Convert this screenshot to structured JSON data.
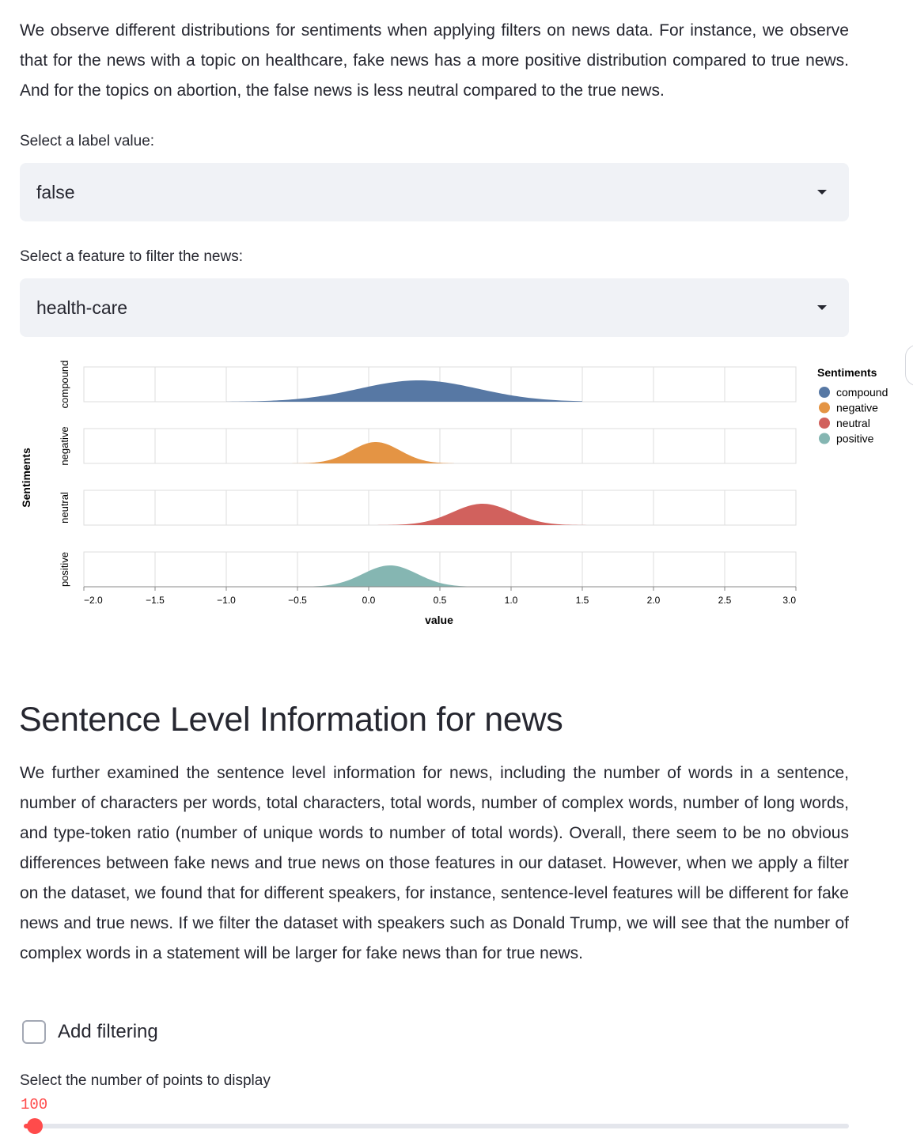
{
  "intro_text": "We observe different distributions for sentiments when applying filters on news data. For instance, we observe that for the news with a topic on healthcare, fake news has a more positive distribution compared to true news. And for the topics on abortion, the false news is less neutral compared to the true news.",
  "label_select": {
    "label": "Select a label value:",
    "value": "false"
  },
  "feature_select": {
    "label": "Select a feature to filter the news:",
    "value": "health-care"
  },
  "chart_data": {
    "type": "area",
    "subtype": "ridgeline density",
    "x_title": "value",
    "y_title": "Sentiments",
    "xlim": [
      -2.0,
      3.0
    ],
    "x_ticks": [
      "−2.0",
      "−1.5",
      "−1.0",
      "−0.5",
      "0.0",
      "0.5",
      "1.0",
      "1.5",
      "2.0",
      "2.5",
      "3.0"
    ],
    "x_tick_values": [
      -2.0,
      -1.5,
      -1.0,
      -0.5,
      0.0,
      0.5,
      1.0,
      1.5,
      2.0,
      2.5,
      3.0
    ],
    "legend": {
      "title": "Sentiments",
      "position": "right"
    },
    "series": [
      {
        "name": "compound",
        "color": "#5778a4",
        "peak_x": 0.35,
        "sd": 0.42,
        "min_x": -1.0,
        "max_x": 1.5
      },
      {
        "name": "negative",
        "color": "#e49444",
        "peak_x": 0.05,
        "sd": 0.17,
        "min_x": -0.55,
        "max_x": 0.6
      },
      {
        "name": "neutral",
        "color": "#d1615d",
        "peak_x": 0.8,
        "sd": 0.21,
        "min_x": 0.0,
        "max_x": 1.75
      },
      {
        "name": "positive",
        "color": "#85b6b2",
        "peak_x": 0.15,
        "sd": 0.19,
        "min_x": -0.8,
        "max_x": 0.95
      }
    ]
  },
  "section_heading": "Sentence Level Information for news",
  "section_text": "We further examined the sentence level information for news, including the number of words in a sentence, number of characters per words, total characters, total words, number of complex words, number of long words, and type-token ratio (number of unique words to number of total words). Overall, there seem to be no obvious differences between fake news and true news on those features in our dataset. However, when we apply a filter on the dataset, we found that for different speakers, for instance, sentence-level features will be different for fake news and true news. If we filter the dataset with speakers such as Donald Trump, we will see that the number of complex words in a statement will be larger for fake news than for true news.",
  "filter_checkbox": {
    "label": "Add filtering",
    "checked": false
  },
  "points_slider": {
    "label": "Select the number of points to display",
    "value": "100",
    "fraction": 0.0,
    "accent": "#ff4b4b"
  }
}
